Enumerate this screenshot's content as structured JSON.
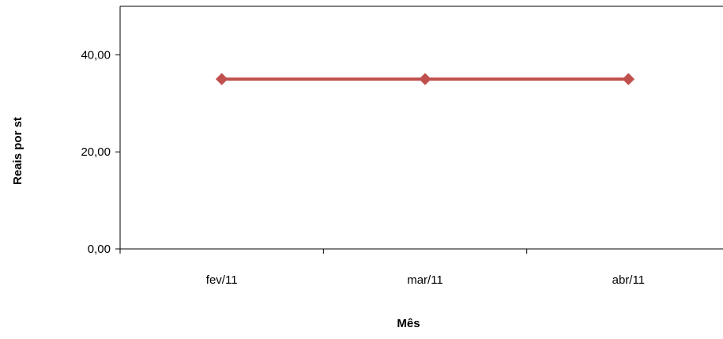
{
  "chart_data": {
    "type": "line",
    "categories": [
      "fev/11",
      "mar/11",
      "abr/11"
    ],
    "series": [
      {
        "values": [
          35,
          35,
          35
        ],
        "color": "#c0504d"
      }
    ],
    "xlabel": "Mês",
    "ylabel": "Reais por st",
    "ylim": [
      0,
      50
    ],
    "yticks": [
      0,
      20,
      40
    ],
    "ytick_labels": [
      "0,00",
      "20,00",
      "40,00"
    ],
    "grid": false,
    "legend": "none",
    "marker": "diamond"
  }
}
